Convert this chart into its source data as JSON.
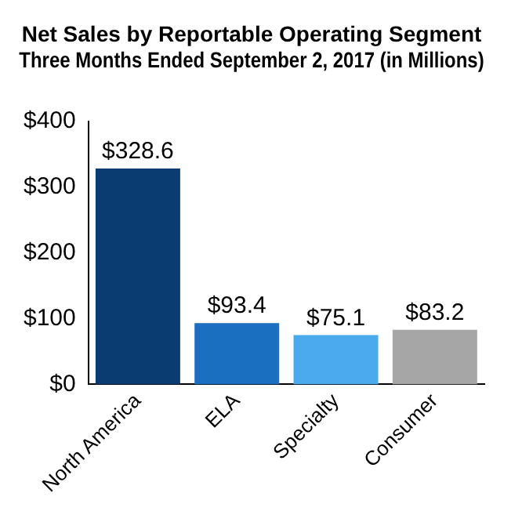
{
  "chart_data": {
    "type": "bar",
    "title": "Net Sales by Reportable Operating Segment",
    "subtitle": "Three Months Ended September 2, 2017 (in Millions)",
    "categories": [
      "North America",
      "ELA",
      "Specialty",
      "Consumer"
    ],
    "values": [
      328.6,
      93.4,
      75.1,
      83.2
    ],
    "colors": [
      "#0b3c71",
      "#1a6fc1",
      "#4ba9ee",
      "#a6a6a6"
    ],
    "value_labels": [
      "$328.6",
      "$93.4",
      "$75.1",
      "$83.2"
    ],
    "ylim": [
      0,
      400
    ],
    "yticks": [
      {
        "value": 0,
        "label": "$0"
      },
      {
        "value": 100,
        "label": "$100"
      },
      {
        "value": 200,
        "label": "$200"
      },
      {
        "value": 300,
        "label": "$300"
      },
      {
        "value": 400,
        "label": "$400"
      }
    ],
    "grid": false,
    "legend": false
  }
}
